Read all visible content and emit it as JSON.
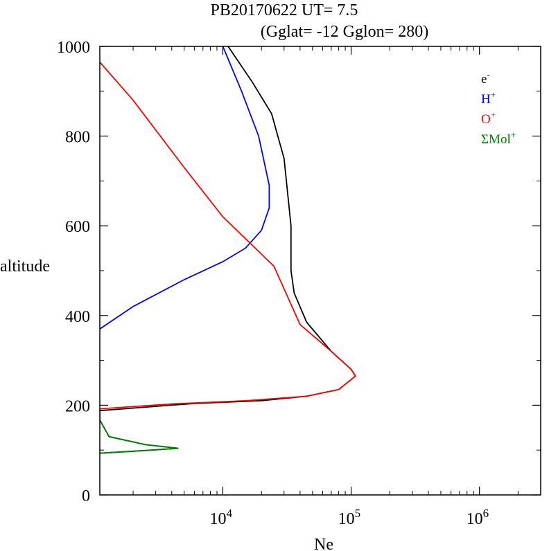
{
  "chart_data": {
    "type": "line",
    "title_line1": "PB20170622   UT=  7.5",
    "title_line2": "(Gglat= -12   Gglon=  280)",
    "xlabel": "Ne",
    "ylabel": "altitude",
    "xscale": "log",
    "xlim": [
      1100,
      3000000
    ],
    "ylim": [
      0,
      1000
    ],
    "yticks": [
      {
        "value": 0,
        "label": "0"
      },
      {
        "value": 200,
        "label": "200"
      },
      {
        "value": 400,
        "label": "400"
      },
      {
        "value": 600,
        "label": "600"
      },
      {
        "value": 800,
        "label": "800"
      },
      {
        "value": 1000,
        "label": "1000"
      }
    ],
    "xticks": [
      {
        "value": 10000,
        "base": "10",
        "exp": "4"
      },
      {
        "value": 100000,
        "base": "10",
        "exp": "5"
      },
      {
        "value": 1000000,
        "base": "10",
        "exp": "6"
      }
    ],
    "legend_position": "top-right",
    "series": [
      {
        "name": "e",
        "sup": "-",
        "color": "#000000",
        "points": [
          [
            1100,
            93
          ],
          [
            2500,
            99
          ],
          [
            4500,
            104
          ],
          [
            2500,
            112
          ],
          [
            1300,
            130
          ],
          [
            1100,
            167
          ],
          [
            1100,
            188
          ],
          [
            6000,
            204
          ],
          [
            20000,
            210
          ],
          [
            45000,
            220
          ],
          [
            80000,
            235
          ],
          [
            108000,
            265
          ],
          [
            100000,
            280
          ],
          [
            70000,
            320
          ],
          [
            45000,
            385
          ],
          [
            36000,
            450
          ],
          [
            34000,
            500
          ],
          [
            34000,
            600
          ],
          [
            30000,
            750
          ],
          [
            24000,
            850
          ],
          [
            17000,
            920
          ],
          [
            11000,
            1000
          ]
        ]
      },
      {
        "name": "H",
        "sup": "+",
        "color": "#0000ff",
        "points": [
          [
            1100,
            370
          ],
          [
            2000,
            420
          ],
          [
            5000,
            480
          ],
          [
            10000,
            520
          ],
          [
            15000,
            550
          ],
          [
            20000,
            590
          ],
          [
            23000,
            640
          ],
          [
            23000,
            690
          ],
          [
            19000,
            800
          ],
          [
            14000,
            900
          ],
          [
            10000,
            1000
          ]
        ]
      },
      {
        "name": "O",
        "sup": "+",
        "color": "#ff0000",
        "points": [
          [
            1100,
            192
          ],
          [
            4000,
            203
          ],
          [
            15000,
            210
          ],
          [
            45000,
            220
          ],
          [
            80000,
            235
          ],
          [
            108000,
            265
          ],
          [
            100000,
            280
          ],
          [
            70000,
            320
          ],
          [
            40000,
            380
          ],
          [
            25000,
            510
          ],
          [
            10000,
            620
          ],
          [
            5000,
            730
          ],
          [
            2000,
            880
          ],
          [
            1100,
            965
          ]
        ]
      },
      {
        "name": "ΣMol",
        "sup": "+",
        "color": "#008000",
        "points": [
          [
            1100,
            93
          ],
          [
            2500,
            99
          ],
          [
            4500,
            104
          ],
          [
            2500,
            112
          ],
          [
            1300,
            130
          ],
          [
            1100,
            167
          ]
        ]
      }
    ]
  }
}
